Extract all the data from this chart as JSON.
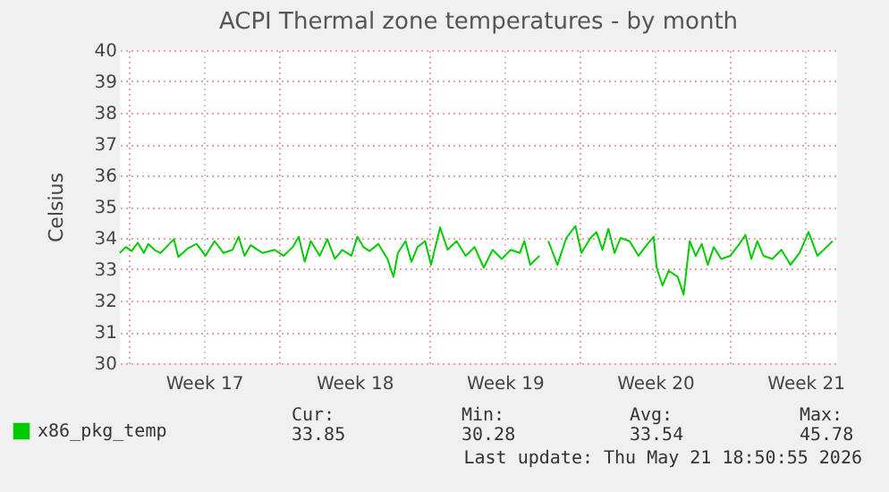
{
  "chart_data": {
    "type": "line",
    "title": "ACPI Thermal zone temperatures - by month",
    "ylabel": "Celsius",
    "x": [
      "2026-04-18T14:00",
      "2026-04-18T20:40",
      "2026-04-19T03:20",
      "2026-04-19T10:00",
      "2026-04-19T16:50",
      "2026-04-19T21:50",
      "2026-04-20T04:40",
      "2026-04-20T11:20",
      "2026-04-20T18:00",
      "2026-04-21T02:20",
      "2026-04-21T07:20",
      "2026-04-21T17:30",
      "2026-04-22T03:40",
      "2026-04-22T13:40",
      "2026-04-22T23:50",
      "2026-04-23T09:50",
      "2026-04-23T19:50",
      "2026-04-24T02:40",
      "2026-04-24T09:20",
      "2026-04-24T16:10",
      "2026-04-25T05:30",
      "2026-04-25T19:00",
      "2026-04-26T05:00",
      "2026-04-26T15:10",
      "2026-04-26T21:50",
      "2026-04-27T04:30",
      "2026-04-27T11:20",
      "2026-04-27T21:20",
      "2026-04-28T05:50",
      "2026-04-28T14:10",
      "2026-04-28T22:30",
      "2026-04-29T08:40",
      "2026-04-29T15:20",
      "2026-04-29T22:10",
      "2026-04-30T04:50",
      "2026-04-30T14:50",
      "2026-05-01T01:00",
      "2026-05-01T07:40",
      "2026-05-01T12:40",
      "2026-05-01T21:10",
      "2026-05-02T03:50",
      "2026-05-02T10:30",
      "2026-05-02T19:00",
      "2026-05-03T01:40",
      "2026-05-03T11:50",
      "2026-05-03T20:10",
      "2026-05-04T06:10",
      "2026-05-04T16:20",
      "2026-05-05T02:20",
      "2026-05-05T12:30",
      "2026-05-05T22:30",
      "2026-05-06T08:40",
      "2026-05-06T18:40",
      "2026-05-07T04:50",
      "2026-05-07T09:50",
      "2026-05-07T16:30",
      "2026-05-08T02:40",
      "2026-05-08T09:20",
      "2026-05-08T12:40",
      "2026-05-08T22:50",
      "2026-05-09T08:50",
      "2026-05-09T19:00",
      "2026-05-10T01:40",
      "2026-05-10T11:50",
      "2026-05-10T18:30",
      "2026-05-11T01:10",
      "2026-05-11T07:50",
      "2026-05-11T14:40",
      "2026-05-11T21:20",
      "2026-05-12T07:20",
      "2026-05-12T17:30",
      "2026-05-13T03:40",
      "2026-05-13T10:20",
      "2026-05-13T13:40",
      "2026-05-13T20:20",
      "2026-05-14T03:10",
      "2026-05-14T13:10",
      "2026-05-14T19:50",
      "2026-05-15T02:40",
      "2026-05-15T09:20",
      "2026-05-15T16:10",
      "2026-05-15T22:50",
      "2026-05-16T05:30",
      "2026-05-16T13:50",
      "2026-05-17T00:00",
      "2026-05-17T10:10",
      "2026-05-17T16:50",
      "2026-05-17T23:30",
      "2026-05-18T06:10",
      "2026-05-18T13:00",
      "2026-05-18T23:00",
      "2026-05-19T09:10",
      "2026-05-19T19:10",
      "2026-05-20T05:20",
      "2026-05-20T15:20",
      "2026-05-21T01:20",
      "2026-05-21T11:30",
      "2026-05-21T18:10"
    ],
    "series": [
      {
        "name": "x86_pkg_temp",
        "color": "#00cc00",
        "values": [
          33.52,
          33.71,
          33.58,
          33.85,
          33.52,
          33.81,
          33.62,
          33.52,
          33.71,
          33.96,
          33.39,
          33.66,
          33.81,
          33.43,
          33.9,
          33.52,
          33.62,
          34.04,
          33.43,
          33.77,
          33.52,
          33.62,
          33.43,
          33.71,
          34.04,
          33.24,
          33.9,
          33.43,
          33.96,
          33.33,
          33.62,
          33.43,
          34.04,
          33.71,
          33.58,
          33.81,
          33.33,
          32.76,
          33.52,
          33.9,
          33.24,
          33.71,
          33.9,
          33.14,
          34.34,
          33.62,
          33.9,
          33.43,
          33.71,
          33.05,
          33.62,
          33.33,
          33.62,
          33.52,
          33.9,
          33.14,
          33.43,
          null,
          33.9,
          33.14,
          34.0,
          34.38,
          33.52,
          34.0,
          34.19,
          33.62,
          34.29,
          33.52,
          34.0,
          33.9,
          33.43,
          33.81,
          34.04,
          33.05,
          32.48,
          32.95,
          32.76,
          32.19,
          33.9,
          33.43,
          33.81,
          33.14,
          33.71,
          33.33,
          33.43,
          33.81,
          34.1,
          33.33,
          33.9,
          33.43,
          33.33,
          33.62,
          33.14,
          33.52,
          34.19,
          33.43,
          33.71,
          33.9
        ]
      }
    ],
    "xlim": [
      "2026-04-18T14:00",
      "2026-05-21T23:20"
    ],
    "xticks": [
      {
        "value": "2026-04-19T00:00",
        "label": null
      },
      {
        "value": "2026-04-22T12:00",
        "label": "Week 17"
      },
      {
        "value": "2026-04-26T00:00",
        "label": null
      },
      {
        "value": "2026-04-29T12:00",
        "label": "Week 18"
      },
      {
        "value": "2026-05-03T00:00",
        "label": null
      },
      {
        "value": "2026-05-06T12:00",
        "label": "Week 19"
      },
      {
        "value": "2026-05-10T00:00",
        "label": null
      },
      {
        "value": "2026-05-13T12:00",
        "label": "Week 20"
      },
      {
        "value": "2026-05-17T00:00",
        "label": null
      },
      {
        "value": "2026-05-20T12:00",
        "label": "Week 21"
      }
    ],
    "ylim": [
      30,
      40
    ],
    "yticks": [
      30,
      31,
      32,
      33,
      34,
      35,
      36,
      37,
      38,
      39,
      40
    ],
    "grid": true,
    "legend": "bottom left",
    "annotations": [
      "Cur:",
      "33.85",
      "Min:",
      "30.28",
      "Avg:",
      "33.54",
      "Max:",
      "45.78",
      "Last update: Thu May 21 18:50:55 2026"
    ]
  }
}
